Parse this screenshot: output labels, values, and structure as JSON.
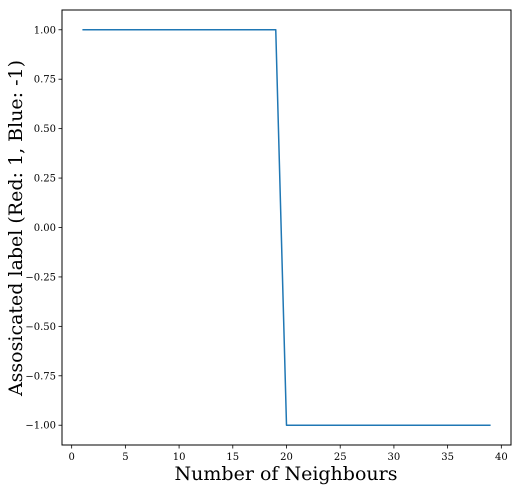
{
  "chart_data": {
    "type": "line",
    "title": "",
    "xlabel": "Number of Neighbours",
    "ylabel": "Assosicated label (Red: 1, Blue: -1)",
    "xlim": [
      -0.9,
      40.9
    ],
    "ylim": [
      -1.1,
      1.1
    ],
    "x_ticks": [
      0,
      5,
      10,
      15,
      20,
      25,
      30,
      35,
      40
    ],
    "y_ticks": [
      1.0,
      0.75,
      0.5,
      0.25,
      0.0,
      -0.25,
      -0.5,
      -0.75,
      -1.0
    ],
    "x_tick_labels": [
      "0",
      "5",
      "10",
      "15",
      "20",
      "25",
      "30",
      "35",
      "40"
    ],
    "y_tick_labels": [
      "1.00",
      "0.75",
      "0.50",
      "0.25",
      "0.00",
      "−0.25",
      "−0.50",
      "−0.75",
      "−1.00"
    ],
    "grid": false,
    "legend": "none",
    "series": [
      {
        "color": "#1f77b4",
        "x": [
          1,
          2,
          3,
          4,
          5,
          6,
          7,
          8,
          9,
          10,
          11,
          12,
          13,
          14,
          15,
          16,
          17,
          18,
          19,
          20,
          21,
          22,
          23,
          24,
          25,
          26,
          27,
          28,
          29,
          30,
          31,
          32,
          33,
          34,
          35,
          36,
          37,
          38,
          39
        ],
        "y": [
          1,
          1,
          1,
          1,
          1,
          1,
          1,
          1,
          1,
          1,
          1,
          1,
          1,
          1,
          1,
          1,
          1,
          1,
          1,
          -1,
          -1,
          -1,
          -1,
          -1,
          -1,
          -1,
          -1,
          -1,
          -1,
          -1,
          -1,
          -1,
          -1,
          -1,
          -1,
          -1,
          -1,
          -1,
          -1
        ]
      }
    ]
  }
}
